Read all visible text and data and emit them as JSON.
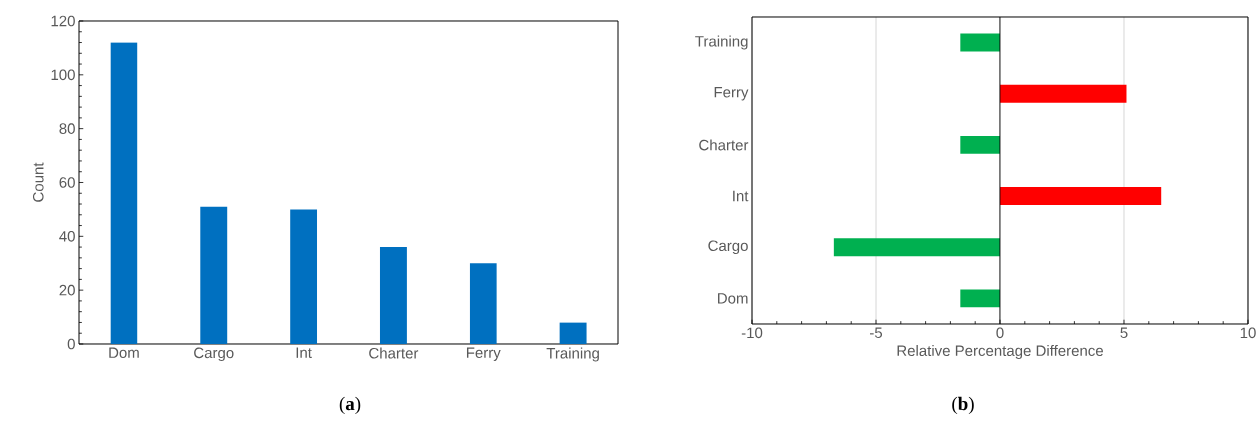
{
  "chart_data": [
    {
      "type": "bar",
      "ylabel": "Count",
      "categories": [
        "Dom",
        "Cargo",
        "Int",
        "Charter",
        "Ferry",
        "Training"
      ],
      "values": [
        112,
        51,
        50,
        36,
        30,
        8
      ],
      "color": "#0070c0",
      "ylim": [
        0,
        120
      ],
      "yticks": [
        0,
        20,
        40,
        60,
        80,
        100,
        120
      ],
      "annotations": [
        "(**a**)"
      ]
    },
    {
      "type": "bar",
      "orientation": "horizontal",
      "xlabel": "Relative Percentage Difference",
      "categories": [
        "Training",
        "Ferry",
        "Charter",
        "Int",
        "Cargo",
        "Dom"
      ],
      "values": [
        -1.6,
        5.1,
        -1.6,
        6.5,
        -6.7,
        -1.6
      ],
      "colors": [
        "#00b050",
        "#ff0000",
        "#00b050",
        "#ff0000",
        "#00b050",
        "#00b050"
      ],
      "xlim": [
        -10,
        10
      ],
      "xticks": [
        -10,
        -5,
        0,
        5,
        10
      ],
      "grid": "x",
      "annotations": [
        "(**b**)"
      ]
    }
  ]
}
